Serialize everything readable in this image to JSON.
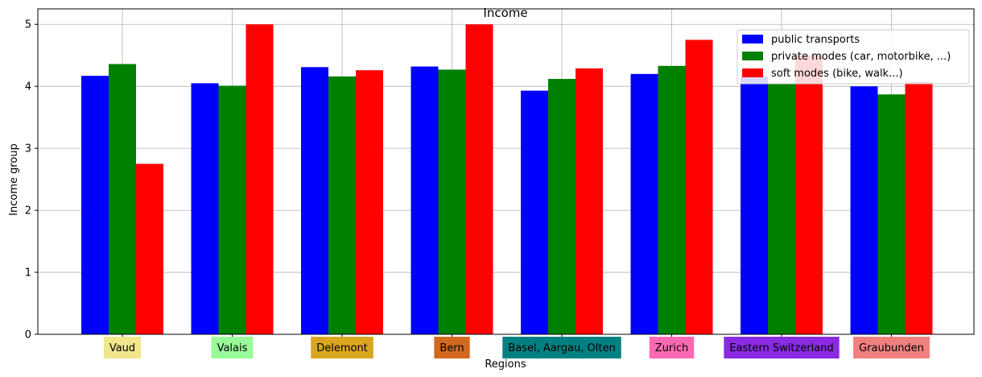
{
  "chart_data": {
    "type": "bar",
    "title": "Income",
    "xlabel": "Regions",
    "ylabel": "Income group",
    "ylim": [
      0,
      5.25
    ],
    "yticks": [
      0,
      1,
      2,
      3,
      4,
      5
    ],
    "grid": true,
    "legend_position": "top-right",
    "categories": [
      "Vaud",
      "Valais",
      "Delemont",
      "Bern",
      "Basel, Aargau, Olten",
      "Zurich",
      "Eastern Switzerland",
      "Graubunden"
    ],
    "category_label_colors": [
      "#f0e68c",
      "#98fb98",
      "#daa520",
      "#d2691e",
      "#008080",
      "#ff69b4",
      "#8a2be2",
      "#f08080"
    ],
    "series": [
      {
        "name": "public transports",
        "color": "#0000ff",
        "values": [
          4.17,
          4.05,
          4.31,
          4.32,
          3.93,
          4.2,
          4.16,
          4.0
        ]
      },
      {
        "name": "private modes (car, motorbike, ...)",
        "color": "#008000",
        "values": [
          4.36,
          4.01,
          4.16,
          4.27,
          4.12,
          4.33,
          4.04,
          3.87
        ]
      },
      {
        "name": "soft modes (bike, walk...)",
        "color": "#ff0000",
        "values": [
          2.75,
          5.0,
          4.26,
          5.0,
          4.29,
          4.75,
          4.5,
          4.07
        ]
      }
    ]
  }
}
